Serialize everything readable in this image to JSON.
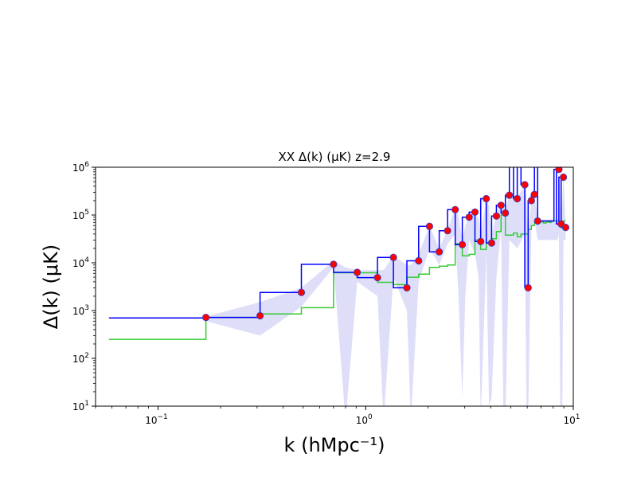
{
  "chart_data": {
    "type": "line",
    "title": "XX  Δ(k) (μK)  z=2.9",
    "xlabel": "k (hMpc⁻¹)",
    "ylabel": "Δ(k) (μK)",
    "x_scale": "log",
    "y_scale": "log",
    "xlim": [
      0.05,
      10
    ],
    "ylim": [
      10,
      1000000
    ],
    "x_ticks": [
      {
        "value": 0.1,
        "base": "10",
        "exp": "−1"
      },
      {
        "value": 1,
        "base": "10",
        "exp": "0"
      },
      {
        "value": 10,
        "base": "10",
        "exp": "1"
      }
    ],
    "y_ticks": [
      {
        "value": 10,
        "base": "10",
        "exp": "1"
      },
      {
        "value": 100,
        "base": "10",
        "exp": "2"
      },
      {
        "value": 1000,
        "base": "10",
        "exp": "3"
      },
      {
        "value": 10000,
        "base": "10",
        "exp": "4"
      },
      {
        "value": 100000,
        "base": "10",
        "exp": "5"
      },
      {
        "value": 1000000,
        "base": "10",
        "exp": "6"
      }
    ],
    "grid": false,
    "colors": {
      "measured_step": "#0000ff",
      "noise_step": "#33cc33",
      "points": "#ff0000",
      "error_band": "#c8c8f5"
    },
    "series": [
      {
        "kind": "step",
        "color": "#0000ff",
        "x": [
          0.058,
          0.17,
          0.31,
          0.49,
          0.7,
          0.91,
          1.14,
          1.36,
          1.58,
          1.8,
          2.03,
          2.26,
          2.48,
          2.7,
          2.92,
          3.15,
          3.36,
          3.58,
          3.81,
          4.04,
          4.26,
          4.49,
          4.71,
          4.92,
          5.15,
          5.37,
          5.6,
          5.84,
          6.06,
          6.28,
          6.5,
          6.73,
          6.96,
          7.18,
          7.4,
          7.62,
          7.85,
          8.07,
          8.29,
          8.52,
          8.74,
          8.96,
          9.19
        ],
        "y": [
          700,
          720,
          2400,
          9300,
          6300,
          4900,
          13000,
          3000,
          11000,
          58000,
          17000,
          47000,
          130000,
          24000,
          90000,
          115000,
          28000,
          220000,
          26000,
          95000,
          160000,
          110000,
          260000,
          2000000,
          220000,
          2000000,
          430000,
          3000,
          200000,
          270000,
          2000000,
          75000,
          75000,
          75000,
          75000,
          75000,
          75000,
          900000,
          65000,
          620000,
          55000,
          55000,
          55000
        ]
      },
      {
        "kind": "step",
        "color": "#33cc33",
        "x": [
          0.058,
          0.17,
          0.31,
          0.49,
          0.7,
          0.91,
          1.14,
          1.36,
          1.58,
          1.8,
          2.03,
          2.26,
          2.48,
          2.7,
          2.92,
          3.15,
          3.36,
          3.58,
          3.81,
          4.04,
          4.26,
          4.49,
          4.71,
          4.92,
          5.15,
          5.37,
          5.6,
          5.84,
          6.06,
          6.28,
          6.5,
          6.73,
          6.96,
          7.18,
          7.4,
          7.62,
          7.85,
          8.07,
          8.29,
          8.52,
          8.74,
          8.96,
          9.19
        ],
        "y": [
          250,
          720,
          850,
          1150,
          6200,
          6200,
          3900,
          3500,
          5000,
          5800,
          8000,
          8500,
          9000,
          25000,
          14000,
          15000,
          30000,
          19000,
          26000,
          32000,
          45000,
          100000,
          38000,
          38000,
          42000,
          35000,
          40000,
          40000,
          50000,
          60000,
          70000,
          70000,
          72000,
          68000,
          72000,
          70000,
          75000,
          75000,
          75000,
          75000,
          75000,
          75000,
          75000
        ]
      },
      {
        "kind": "points",
        "color": "#ff0000",
        "x": [
          0.17,
          0.31,
          0.49,
          0.7,
          0.91,
          1.14,
          1.36,
          1.58,
          1.8,
          2.03,
          2.26,
          2.48,
          2.7,
          2.92,
          3.15,
          3.36,
          3.58,
          3.81,
          4.04,
          4.26,
          4.49,
          4.71,
          4.92,
          5.37,
          5.84,
          6.06,
          6.28,
          6.5,
          6.73,
          8.52,
          8.74,
          8.96,
          9.19
        ],
        "y": [
          720,
          780,
          2400,
          9300,
          6300,
          4900,
          13000,
          3000,
          11000,
          58000,
          17000,
          47000,
          130000,
          24000,
          90000,
          115000,
          28000,
          220000,
          26000,
          95000,
          160000,
          110000,
          260000,
          220000,
          430000,
          3000,
          200000,
          270000,
          75000,
          900000,
          65000,
          620000,
          55000
        ]
      }
    ],
    "error_band": {
      "color": "#c8c8f5",
      "x": [
        0.17,
        0.31,
        0.49,
        0.7,
        0.8,
        0.91,
        1.14,
        1.22,
        1.36,
        1.58,
        1.65,
        1.8,
        2.03,
        2.26,
        2.48,
        2.7,
        2.8,
        2.92,
        3.02,
        3.15,
        3.36,
        3.5,
        3.58,
        3.81,
        3.93,
        4.04,
        4.26,
        4.49,
        4.6,
        4.71,
        4.92,
        5.37,
        5.84,
        5.95,
        6.06,
        6.28,
        6.5,
        6.73,
        8.4,
        8.52,
        8.65,
        8.74,
        8.86,
        8.96,
        9.19
      ],
      "upper": [
        750,
        1500,
        3000,
        11000,
        8000,
        7000,
        7000,
        7000,
        14000,
        9000,
        9000,
        15000,
        60000,
        20000,
        50000,
        140000,
        100000,
        30000,
        60000,
        95000,
        120000,
        80000,
        40000,
        230000,
        150000,
        40000,
        100000,
        170000,
        150000,
        120000,
        270000,
        230000,
        450000,
        200000,
        30000,
        210000,
        280000,
        80000,
        80000,
        950000,
        200000,
        80000,
        200000,
        650000,
        60000
      ],
      "lower": [
        600,
        300,
        1200,
        8000,
        5,
        4000,
        2000,
        5,
        5000,
        1000,
        5,
        4000,
        20000,
        9000,
        25000,
        40000,
        2000,
        15,
        2000,
        30000,
        15000,
        5000,
        5,
        15000,
        10,
        15,
        5000,
        50000,
        10,
        5,
        30000,
        20000,
        40000,
        10,
        5,
        50000,
        80000,
        30000,
        30000,
        40000,
        10,
        5,
        10,
        30000,
        30000
      ]
    }
  }
}
